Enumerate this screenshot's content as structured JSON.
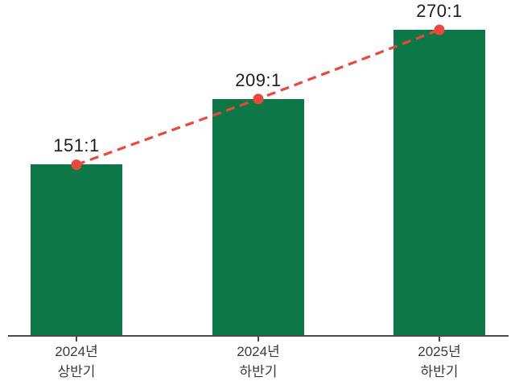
{
  "chart_data": {
    "type": "bar",
    "categories": [
      "2024년\n상반기",
      "2024년\n하반기",
      "2025년\n하반기"
    ],
    "values": [
      151,
      209,
      270
    ],
    "value_labels": [
      "151:1",
      "209:1",
      "270:1"
    ],
    "overlay": {
      "type": "line",
      "style": "dashed",
      "marker": "circle",
      "follows": "bar tops"
    },
    "y_axis": {
      "visible": false,
      "baseline": 0
    },
    "x_axis": {
      "visible": true,
      "ticks": true
    },
    "grid": false,
    "legend": false,
    "colors": {
      "bar": "#0d7747",
      "line": "#e8493c",
      "marker": "#e8493c",
      "axis": "#4a4a4a",
      "value_text": "#1d1d1d",
      "category_text": "#3a3a3a",
      "background": "#ffffff"
    }
  }
}
